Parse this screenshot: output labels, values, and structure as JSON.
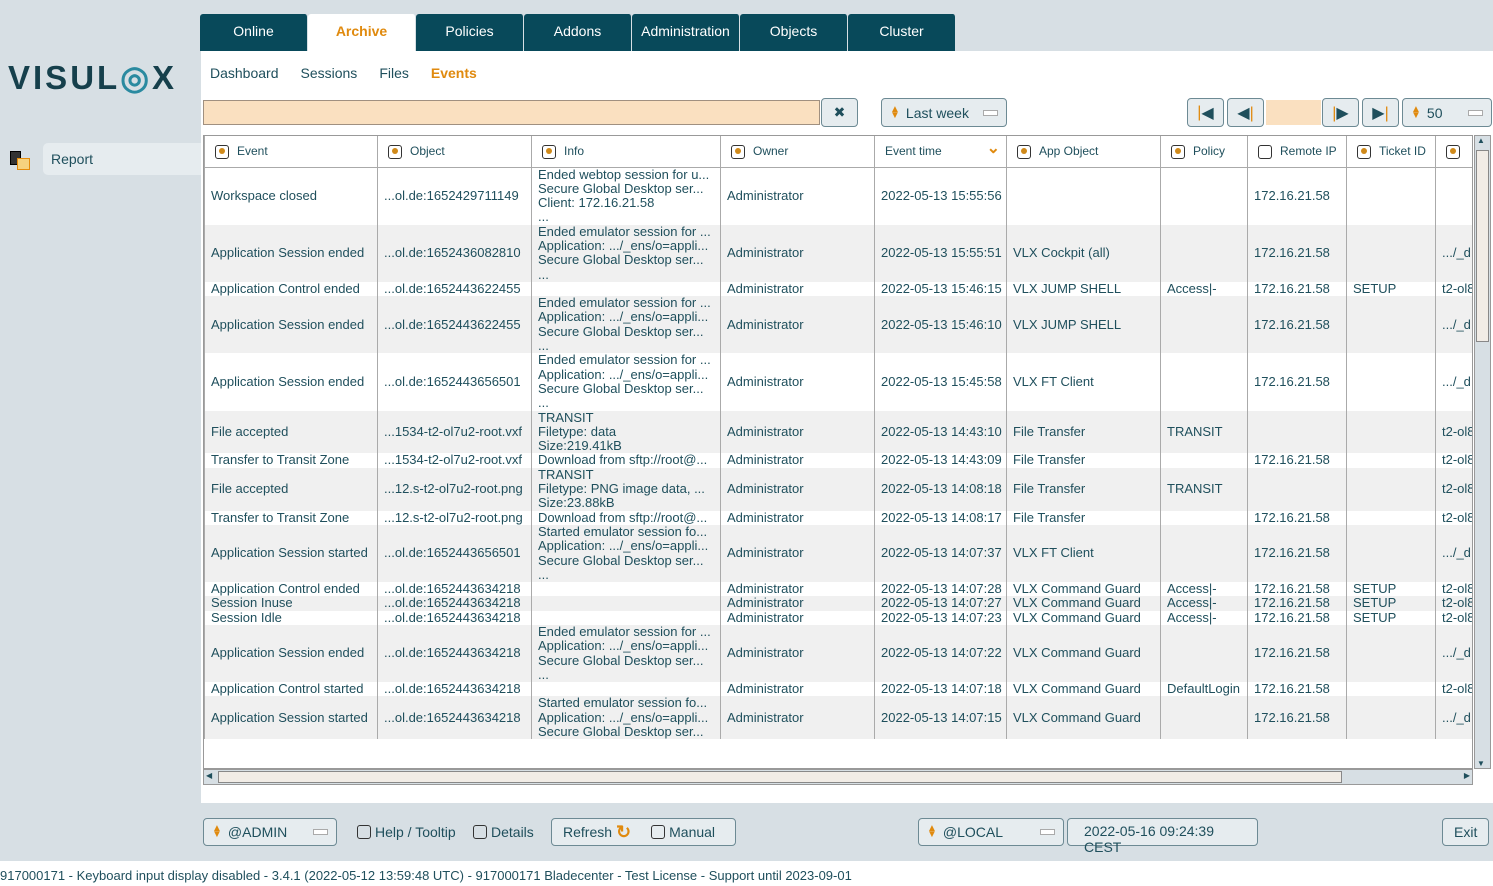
{
  "logo": "VISULOX",
  "sidebar": {
    "items": [
      {
        "label": "Report",
        "icon": "report-icon"
      }
    ]
  },
  "tabs": [
    {
      "label": "Online"
    },
    {
      "label": "Archive",
      "active": true
    },
    {
      "label": "Policies"
    },
    {
      "label": "Addons"
    },
    {
      "label": "Administration"
    },
    {
      "label": "Objects"
    },
    {
      "label": "Cluster"
    }
  ],
  "subnav": [
    {
      "label": "Dashboard"
    },
    {
      "label": "Sessions"
    },
    {
      "label": "Files"
    },
    {
      "label": "Events",
      "active": true
    }
  ],
  "toolbar": {
    "filter_value": "",
    "clear_icon": "✖",
    "range": "Last week",
    "page_value": "",
    "page_size": "50"
  },
  "table": {
    "columns": [
      "Event",
      "Object",
      "Info",
      "Owner",
      "Event time",
      "App Object",
      "Policy",
      "Remote IP",
      "Ticket ID",
      ""
    ],
    "column_checked": [
      true,
      true,
      true,
      true,
      null,
      true,
      true,
      false,
      true,
      true
    ],
    "rows": [
      [
        "Workspace closed",
        "...ol.de:1652429711149",
        "Ended webtop session for u...\nSecure Global Desktop ser...\nClient: 172.16.21.58\n...",
        "Administrator",
        "2022-05-13 15:55:56",
        "",
        "",
        "172.16.21.58",
        "",
        ""
      ],
      [
        "Application Session ended",
        "...ol.de:1652436082810",
        "Ended emulator session for ...\nApplication: .../_ens/o=appli...\nSecure Global Desktop ser...\n...",
        "Administrator",
        "2022-05-13 15:55:51",
        "VLX Cockpit (all)",
        "",
        "172.16.21.58",
        "",
        ".../_d"
      ],
      [
        "Application Control ended",
        "...ol.de:1652443622455",
        "",
        "Administrator",
        "2022-05-13 15:46:15",
        "VLX JUMP SHELL",
        "Access|-",
        "172.16.21.58",
        "SETUP",
        "t2-ol8"
      ],
      [
        "Application Session ended",
        "...ol.de:1652443622455",
        "Ended emulator session for ...\nApplication: .../_ens/o=appli...\nSecure Global Desktop ser...\n...",
        "Administrator",
        "2022-05-13 15:46:10",
        "VLX JUMP SHELL",
        "",
        "172.16.21.58",
        "",
        ".../_d"
      ],
      [
        "Application Session ended",
        "...ol.de:1652443656501",
        "Ended emulator session for ...\nApplication: .../_ens/o=appli...\nSecure Global Desktop ser...\n...",
        "Administrator",
        "2022-05-13 15:45:58",
        "VLX FT Client",
        "",
        "172.16.21.58",
        "",
        ".../_d"
      ],
      [
        "File accepted",
        "...1534-t2-ol7u2-root.vxf",
        "TRANSIT\nFiletype: data\nSize:219.41kB",
        "Administrator",
        "2022-05-13 14:43:10",
        "File Transfer",
        "TRANSIT",
        "",
        "",
        "t2-ol8"
      ],
      [
        "Transfer to Transit Zone",
        "...1534-t2-ol7u2-root.vxf",
        "Download from sftp://root@...",
        "Administrator",
        "2022-05-13 14:43:09",
        "File Transfer",
        "",
        "172.16.21.58",
        "",
        "t2-ol8"
      ],
      [
        "File accepted",
        "...12.s-t2-ol7u2-root.png",
        "TRANSIT\nFiletype: PNG image data, ...\nSize:23.88kB",
        "Administrator",
        "2022-05-13 14:08:18",
        "File Transfer",
        "TRANSIT",
        "",
        "",
        "t2-ol8"
      ],
      [
        "Transfer to Transit Zone",
        "...12.s-t2-ol7u2-root.png",
        "Download from sftp://root@...",
        "Administrator",
        "2022-05-13 14:08:17",
        "File Transfer",
        "",
        "172.16.21.58",
        "",
        "t2-ol8"
      ],
      [
        "Application Session started",
        "...ol.de:1652443656501",
        "Started emulator session fo...\nApplication: .../_ens/o=appli...\nSecure Global Desktop ser...\n...",
        "Administrator",
        "2022-05-13 14:07:37",
        "VLX FT Client",
        "",
        "172.16.21.58",
        "",
        ".../_d"
      ],
      [
        "Application Control ended",
        "...ol.de:1652443634218",
        "",
        "Administrator",
        "2022-05-13 14:07:28",
        "VLX Command Guard",
        "Access|-",
        "172.16.21.58",
        "SETUP",
        "t2-ol8"
      ],
      [
        "Session Inuse",
        "...ol.de:1652443634218",
        "",
        "Administrator",
        "2022-05-13 14:07:27",
        "VLX Command Guard",
        "Access|-",
        "172.16.21.58",
        "SETUP",
        "t2-ol8"
      ],
      [
        "Session Idle",
        "...ol.de:1652443634218",
        "",
        "Administrator",
        "2022-05-13 14:07:23",
        "VLX Command Guard",
        "Access|-",
        "172.16.21.58",
        "SETUP",
        "t2-ol8"
      ],
      [
        "Application Session ended",
        "...ol.de:1652443634218",
        "Ended emulator session for ...\nApplication: .../_ens/o=appli...\nSecure Global Desktop ser...\n...",
        "Administrator",
        "2022-05-13 14:07:22",
        "VLX Command Guard",
        "",
        "172.16.21.58",
        "",
        ".../_d"
      ],
      [
        "Application Control started",
        "...ol.de:1652443634218",
        "",
        "Administrator",
        "2022-05-13 14:07:18",
        "VLX Command Guard",
        "DefaultLogin",
        "172.16.21.58",
        "",
        "t2-ol8"
      ],
      [
        "Application Session started",
        "...ol.de:1652443634218",
        "Started emulator session fo...\nApplication: .../_ens/o=appli...\nSecure Global Desktop ser...",
        "Administrator",
        "2022-05-13 14:07:15",
        "VLX Command Guard",
        "",
        "172.16.21.58",
        "",
        ".../_d"
      ]
    ]
  },
  "footer": {
    "user": "@ADMIN",
    "help": "Help / Tooltip",
    "details": "Details",
    "refresh": "Refresh",
    "manual": "Manual",
    "realm": "@LOCAL",
    "datetime": "2022-05-16 09:24:39 CEST",
    "exit": "Exit"
  },
  "status": "917000171 - Keyboard input display disabled - 3.4.1 (2022-05-12 13:59:48 UTC) - 917000171 Bladecenter - Test License - Support until 2023-09-01",
  "colors": {
    "accent": "#e08a0e",
    "tab_bg": "#08495a",
    "text": "#1f4f5c",
    "filter_bg": "#fae0c0"
  }
}
